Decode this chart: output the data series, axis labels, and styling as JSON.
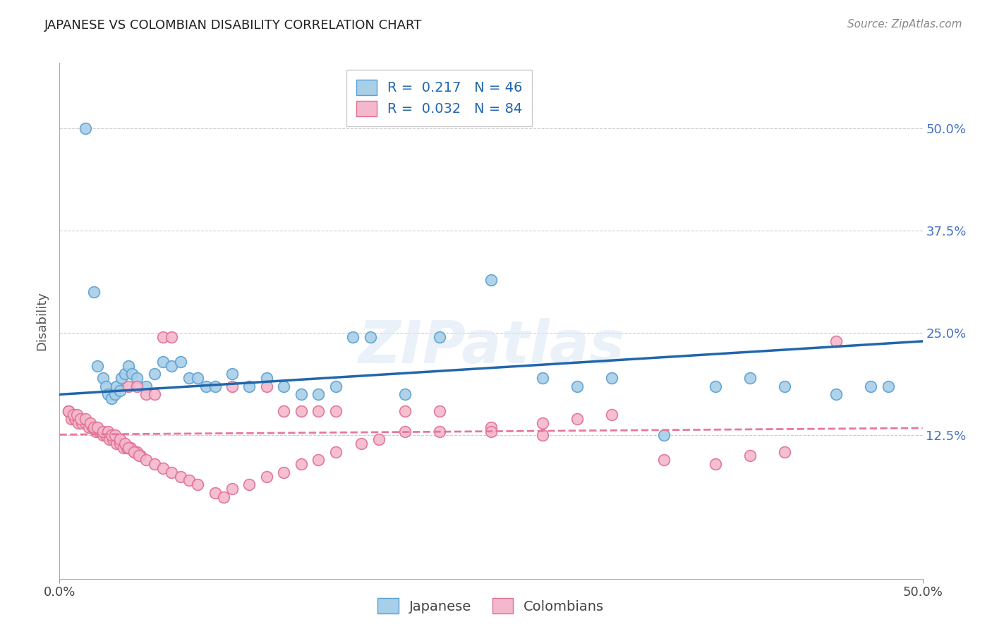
{
  "title": "JAPANESE VS COLOMBIAN DISABILITY CORRELATION CHART",
  "source": "Source: ZipAtlas.com",
  "ylabel": "Disability",
  "xlim": [
    0.0,
    0.5
  ],
  "ylim": [
    -0.05,
    0.58
  ],
  "ytick_positions": [
    0.125,
    0.25,
    0.375,
    0.5
  ],
  "ytick_labels": [
    "12.5%",
    "25.0%",
    "37.5%",
    "50.0%"
  ],
  "japanese_color": "#a8cfe8",
  "japanese_edge_color": "#5a9fd4",
  "colombian_color": "#f4b8ce",
  "colombian_edge_color": "#e07090",
  "japanese_line_color": "#2166ac",
  "colombian_line_color": "#e8789a",
  "R_japanese": 0.217,
  "N_japanese": 46,
  "R_colombian": 0.032,
  "N_colombian": 84,
  "legend_label_japanese": "Japanese",
  "legend_label_colombian": "Colombians",
  "watermark": "ZIPatlas",
  "japanese_x": [
    0.015,
    0.02,
    0.022,
    0.025,
    0.027,
    0.028,
    0.03,
    0.032,
    0.033,
    0.035,
    0.036,
    0.038,
    0.04,
    0.042,
    0.045,
    0.05,
    0.055,
    0.06,
    0.065,
    0.07,
    0.075,
    0.08,
    0.085,
    0.09,
    0.1,
    0.11,
    0.12,
    0.13,
    0.14,
    0.15,
    0.16,
    0.17,
    0.18,
    0.2,
    0.22,
    0.25,
    0.28,
    0.3,
    0.32,
    0.35,
    0.38,
    0.4,
    0.42,
    0.45,
    0.47,
    0.48
  ],
  "japanese_y": [
    0.5,
    0.3,
    0.21,
    0.195,
    0.185,
    0.175,
    0.17,
    0.175,
    0.185,
    0.18,
    0.195,
    0.2,
    0.21,
    0.2,
    0.195,
    0.185,
    0.2,
    0.215,
    0.21,
    0.215,
    0.195,
    0.195,
    0.185,
    0.185,
    0.2,
    0.185,
    0.195,
    0.185,
    0.175,
    0.175,
    0.185,
    0.245,
    0.245,
    0.175,
    0.245,
    0.315,
    0.195,
    0.185,
    0.195,
    0.125,
    0.185,
    0.195,
    0.185,
    0.175,
    0.185,
    0.185
  ],
  "colombian_x": [
    0.005,
    0.007,
    0.009,
    0.011,
    0.013,
    0.015,
    0.017,
    0.019,
    0.021,
    0.023,
    0.025,
    0.027,
    0.029,
    0.031,
    0.033,
    0.035,
    0.037,
    0.039,
    0.041,
    0.043,
    0.045,
    0.047,
    0.005,
    0.008,
    0.01,
    0.012,
    0.015,
    0.018,
    0.02,
    0.022,
    0.025,
    0.028,
    0.03,
    0.032,
    0.035,
    0.038,
    0.04,
    0.043,
    0.046,
    0.05,
    0.055,
    0.06,
    0.065,
    0.07,
    0.075,
    0.08,
    0.09,
    0.095,
    0.1,
    0.11,
    0.12,
    0.13,
    0.14,
    0.15,
    0.16,
    0.175,
    0.185,
    0.2,
    0.22,
    0.25,
    0.28,
    0.3,
    0.32,
    0.35,
    0.38,
    0.4,
    0.42,
    0.45,
    0.04,
    0.045,
    0.05,
    0.055,
    0.06,
    0.065,
    0.2,
    0.22,
    0.25,
    0.28,
    0.1,
    0.12,
    0.13,
    0.14,
    0.15,
    0.16
  ],
  "colombian_y": [
    0.155,
    0.145,
    0.145,
    0.14,
    0.14,
    0.14,
    0.135,
    0.135,
    0.13,
    0.13,
    0.125,
    0.125,
    0.12,
    0.12,
    0.115,
    0.115,
    0.11,
    0.11,
    0.11,
    0.105,
    0.105,
    0.1,
    0.155,
    0.15,
    0.15,
    0.145,
    0.145,
    0.14,
    0.135,
    0.135,
    0.13,
    0.13,
    0.125,
    0.125,
    0.12,
    0.115,
    0.11,
    0.105,
    0.1,
    0.095,
    0.09,
    0.085,
    0.08,
    0.075,
    0.07,
    0.065,
    0.055,
    0.05,
    0.06,
    0.065,
    0.075,
    0.08,
    0.09,
    0.095,
    0.105,
    0.115,
    0.12,
    0.13,
    0.13,
    0.135,
    0.14,
    0.145,
    0.15,
    0.095,
    0.09,
    0.1,
    0.105,
    0.24,
    0.185,
    0.185,
    0.175,
    0.175,
    0.245,
    0.245,
    0.155,
    0.155,
    0.13,
    0.125,
    0.185,
    0.185,
    0.155,
    0.155,
    0.155,
    0.155
  ]
}
